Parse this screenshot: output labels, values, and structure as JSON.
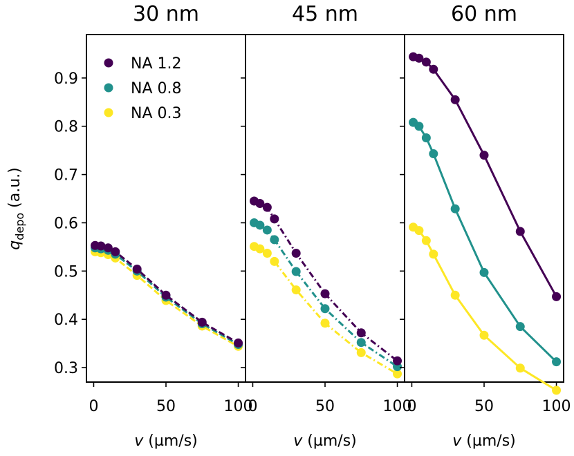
{
  "chart_data": {
    "type": "line",
    "ylabel": "q",
    "ylabel_subscript": "depo",
    "ylabel_unit": "(a.u.)",
    "ylim": [
      0.27,
      0.99
    ],
    "yticks": [
      0.3,
      0.4,
      0.5,
      0.6,
      0.7,
      0.8,
      0.9
    ],
    "ytick_labels": [
      "0.3",
      "0.4",
      "0.5",
      "0.6",
      "0.7",
      "0.8",
      "0.9"
    ],
    "xlim": [
      -5,
      105
    ],
    "xticks": [
      0,
      50,
      100
    ],
    "xtick_labels": [
      "0",
      "50",
      "100"
    ],
    "legend": {
      "location": "top-left",
      "entries": [
        "NA 1.2",
        "NA 0.8",
        "NA 0.3"
      ]
    },
    "colors": {
      "NA 1.2": "#440154",
      "NA 0.8": "#21918c",
      "NA 0.3": "#fde725"
    },
    "panels": [
      {
        "title": "30 nm",
        "xlabel_var": "v",
        "xlabel_unit": "(µm/s)",
        "linestyle": "dashed",
        "x": [
          1,
          5,
          10,
          15,
          30,
          50,
          75,
          100
        ],
        "series": [
          {
            "name": "NA 1.2",
            "values": [
              0.553,
              0.552,
              0.548,
              0.54,
              0.504,
              0.45,
              0.394,
              0.351
            ]
          },
          {
            "name": "NA 0.8",
            "values": [
              0.548,
              0.546,
              0.543,
              0.535,
              0.5,
              0.446,
              0.391,
              0.348
            ]
          },
          {
            "name": "NA 0.3",
            "values": [
              0.54,
              0.538,
              0.534,
              0.527,
              0.491,
              0.439,
              0.386,
              0.344
            ]
          }
        ]
      },
      {
        "title": "45 nm",
        "xlabel_var": "v",
        "xlabel_unit": "(µm/s)",
        "linestyle": "dashdot",
        "x": [
          1,
          5,
          10,
          15,
          30,
          50,
          75,
          100
        ],
        "series": [
          {
            "name": "NA 1.2",
            "values": [
              0.645,
              0.64,
              0.632,
              0.608,
              0.537,
              0.453,
              0.372,
              0.314
            ]
          },
          {
            "name": "NA 0.8",
            "values": [
              0.6,
              0.595,
              0.585,
              0.565,
              0.499,
              0.422,
              0.352,
              0.302
            ]
          },
          {
            "name": "NA 0.3",
            "values": [
              0.551,
              0.546,
              0.537,
              0.52,
              0.461,
              0.392,
              0.331,
              0.287
            ]
          }
        ]
      },
      {
        "title": "60 nm",
        "xlabel_var": "v",
        "xlabel_unit": "(µm/s)",
        "linestyle": "solid",
        "x": [
          1,
          5,
          10,
          15,
          30,
          50,
          75,
          100
        ],
        "series": [
          {
            "name": "NA 1.2",
            "values": [
              0.944,
              0.941,
              0.933,
              0.918,
              0.855,
              0.74,
              0.582,
              0.447
            ]
          },
          {
            "name": "NA 0.8",
            "values": [
              0.808,
              0.8,
              0.776,
              0.743,
              0.629,
              0.497,
              0.385,
              0.312
            ]
          },
          {
            "name": "NA 0.3",
            "values": [
              0.591,
              0.584,
              0.563,
              0.535,
              0.45,
              0.367,
              0.299,
              0.253
            ]
          }
        ]
      }
    ]
  }
}
